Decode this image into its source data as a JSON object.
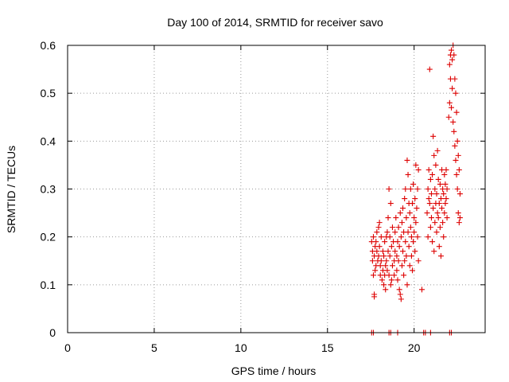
{
  "chart_data": {
    "type": "scatter",
    "title": "Day 100 of 2014, SRMTID for receiver savo",
    "xlabel": "GPS time / hours",
    "ylabel": "SRMTID / TECUs",
    "xlim": [
      0,
      24.1
    ],
    "ylim": [
      0,
      0.6
    ],
    "x_ticks": [
      0,
      5,
      10,
      15,
      20
    ],
    "x_tick_labels": [
      "0",
      "5",
      "10",
      "15",
      "20"
    ],
    "y_ticks": [
      0,
      0.1,
      0.2,
      0.3,
      0.4,
      0.5,
      0.6
    ],
    "y_tick_labels": [
      "0",
      "0.1",
      "0.2",
      "0.3",
      "0.4",
      "0.5",
      "0.6"
    ],
    "grid": true,
    "marker": "+",
    "color": "#dd0000",
    "series": [
      {
        "name": "SRMTID",
        "points": [
          [
            17.55,
            0.0
          ],
          [
            17.65,
            0.0
          ],
          [
            18.55,
            0.0
          ],
          [
            18.65,
            0.0
          ],
          [
            19.05,
            0.0
          ],
          [
            20.55,
            0.0
          ],
          [
            20.65,
            0.0
          ],
          [
            20.95,
            0.0
          ],
          [
            22.05,
            0.0
          ],
          [
            22.15,
            0.0
          ],
          [
            17.55,
            0.19
          ],
          [
            17.6,
            0.17
          ],
          [
            17.6,
            0.15
          ],
          [
            17.65,
            0.12
          ],
          [
            17.65,
            0.2
          ],
          [
            17.7,
            0.08
          ],
          [
            17.7,
            0.075
          ],
          [
            17.7,
            0.16
          ],
          [
            17.75,
            0.13
          ],
          [
            17.75,
            0.18
          ],
          [
            17.8,
            0.14
          ],
          [
            17.8,
            0.19
          ],
          [
            17.85,
            0.21
          ],
          [
            17.85,
            0.17
          ],
          [
            17.9,
            0.15
          ],
          [
            17.95,
            0.22
          ],
          [
            17.95,
            0.16
          ],
          [
            18.0,
            0.23
          ],
          [
            18.0,
            0.18
          ],
          [
            18.05,
            0.14
          ],
          [
            18.05,
            0.12
          ],
          [
            18.1,
            0.2
          ],
          [
            18.1,
            0.15
          ],
          [
            18.15,
            0.11
          ],
          [
            18.2,
            0.13
          ],
          [
            18.2,
            0.17
          ],
          [
            18.25,
            0.1
          ],
          [
            18.25,
            0.16
          ],
          [
            18.3,
            0.12
          ],
          [
            18.3,
            0.19
          ],
          [
            18.35,
            0.14
          ],
          [
            18.35,
            0.09
          ],
          [
            18.4,
            0.15
          ],
          [
            18.4,
            0.2
          ],
          [
            18.45,
            0.21
          ],
          [
            18.45,
            0.13
          ],
          [
            18.5,
            0.17
          ],
          [
            18.5,
            0.24
          ],
          [
            18.55,
            0.3
          ],
          [
            18.55,
            0.12
          ],
          [
            18.6,
            0.2
          ],
          [
            18.6,
            0.16
          ],
          [
            18.65,
            0.27
          ],
          [
            18.65,
            0.1
          ],
          [
            18.7,
            0.11
          ],
          [
            18.7,
            0.18
          ],
          [
            18.75,
            0.14
          ],
          [
            18.75,
            0.22
          ],
          [
            18.8,
            0.19
          ],
          [
            18.85,
            0.12
          ],
          [
            18.85,
            0.15
          ],
          [
            18.9,
            0.17
          ],
          [
            18.9,
            0.21
          ],
          [
            18.95,
            0.24
          ],
          [
            19.0,
            0.16
          ],
          [
            19.0,
            0.13
          ],
          [
            19.05,
            0.19
          ],
          [
            19.05,
            0.11
          ],
          [
            19.1,
            0.15
          ],
          [
            19.1,
            0.22
          ],
          [
            19.15,
            0.09
          ],
          [
            19.15,
            0.18
          ],
          [
            19.2,
            0.08
          ],
          [
            19.2,
            0.25
          ],
          [
            19.25,
            0.07
          ],
          [
            19.25,
            0.2
          ],
          [
            19.3,
            0.23
          ],
          [
            19.3,
            0.14
          ],
          [
            19.35,
            0.26
          ],
          [
            19.35,
            0.17
          ],
          [
            19.4,
            0.12
          ],
          [
            19.4,
            0.21
          ],
          [
            19.45,
            0.28
          ],
          [
            19.45,
            0.15
          ],
          [
            19.5,
            0.19
          ],
          [
            19.5,
            0.3
          ],
          [
            19.55,
            0.16
          ],
          [
            19.55,
            0.24
          ],
          [
            19.6,
            0.36
          ],
          [
            19.6,
            0.1
          ],
          [
            19.65,
            0.33
          ],
          [
            19.65,
            0.21
          ],
          [
            19.7,
            0.27
          ],
          [
            19.7,
            0.18
          ],
          [
            19.75,
            0.25
          ],
          [
            19.75,
            0.14
          ],
          [
            19.8,
            0.3
          ],
          [
            19.8,
            0.22
          ],
          [
            19.85,
            0.16
          ],
          [
            19.85,
            0.2
          ],
          [
            19.9,
            0.27
          ],
          [
            19.9,
            0.13
          ],
          [
            19.95,
            0.31
          ],
          [
            19.95,
            0.19
          ],
          [
            20.0,
            0.24
          ],
          [
            20.0,
            0.21
          ],
          [
            20.05,
            0.17
          ],
          [
            20.05,
            0.28
          ],
          [
            20.1,
            0.23
          ],
          [
            20.1,
            0.35
          ],
          [
            20.15,
            0.26
          ],
          [
            20.2,
            0.2
          ],
          [
            20.2,
            0.3
          ],
          [
            20.25,
            0.34
          ],
          [
            20.25,
            0.15
          ],
          [
            20.45,
            0.09
          ],
          [
            20.75,
            0.25
          ],
          [
            20.8,
            0.2
          ],
          [
            20.8,
            0.3
          ],
          [
            20.85,
            0.34
          ],
          [
            20.85,
            0.28
          ],
          [
            20.9,
            0.55
          ],
          [
            20.9,
            0.27
          ],
          [
            20.95,
            0.32
          ],
          [
            20.95,
            0.22
          ],
          [
            21.0,
            0.24
          ],
          [
            21.0,
            0.29
          ],
          [
            21.05,
            0.33
          ],
          [
            21.05,
            0.19
          ],
          [
            21.1,
            0.41
          ],
          [
            21.1,
            0.26
          ],
          [
            21.15,
            0.37
          ],
          [
            21.15,
            0.17
          ],
          [
            21.2,
            0.3
          ],
          [
            21.2,
            0.23
          ],
          [
            21.25,
            0.35
          ],
          [
            21.25,
            0.27
          ],
          [
            21.3,
            0.29
          ],
          [
            21.3,
            0.21
          ],
          [
            21.35,
            0.38
          ],
          [
            21.35,
            0.25
          ],
          [
            21.4,
            0.32
          ],
          [
            21.4,
            0.24
          ],
          [
            21.45,
            0.27
          ],
          [
            21.45,
            0.18
          ],
          [
            21.5,
            0.31
          ],
          [
            21.5,
            0.22
          ],
          [
            21.55,
            0.28
          ],
          [
            21.55,
            0.16
          ],
          [
            21.6,
            0.26
          ],
          [
            21.6,
            0.34
          ],
          [
            21.65,
            0.3
          ],
          [
            21.65,
            0.23
          ],
          [
            21.7,
            0.29
          ],
          [
            21.7,
            0.2
          ],
          [
            21.75,
            0.33
          ],
          [
            21.75,
            0.25
          ],
          [
            21.8,
            0.27
          ],
          [
            21.8,
            0.31
          ],
          [
            21.85,
            0.34
          ],
          [
            21.85,
            0.28
          ],
          [
            21.9,
            0.24
          ],
          [
            21.9,
            0.3
          ],
          [
            22.0,
            0.45
          ],
          [
            22.05,
            0.48
          ],
          [
            22.05,
            0.56
          ],
          [
            22.1,
            0.58
          ],
          [
            22.1,
            0.53
          ],
          [
            22.15,
            0.59
          ],
          [
            22.15,
            0.47
          ],
          [
            22.2,
            0.57
          ],
          [
            22.2,
            0.51
          ],
          [
            22.25,
            0.6
          ],
          [
            22.25,
            0.44
          ],
          [
            22.3,
            0.58
          ],
          [
            22.3,
            0.42
          ],
          [
            22.35,
            0.53
          ],
          [
            22.35,
            0.39
          ],
          [
            22.4,
            0.5
          ],
          [
            22.4,
            0.36
          ],
          [
            22.45,
            0.46
          ],
          [
            22.45,
            0.33
          ],
          [
            22.5,
            0.4
          ],
          [
            22.5,
            0.3
          ],
          [
            22.55,
            0.37
          ],
          [
            22.55,
            0.25
          ],
          [
            22.6,
            0.34
          ],
          [
            22.6,
            0.23
          ],
          [
            22.65,
            0.29
          ],
          [
            22.65,
            0.24
          ]
        ]
      }
    ]
  }
}
